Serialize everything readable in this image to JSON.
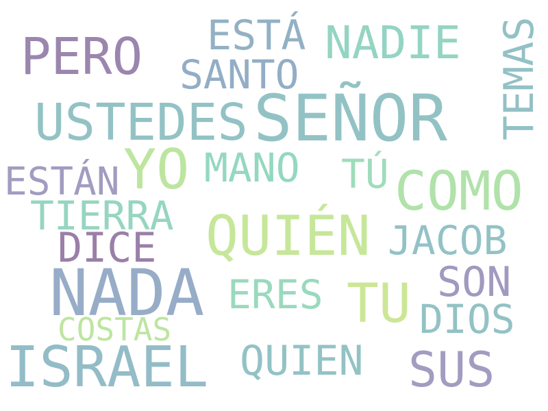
{
  "words": [
    {
      "text": "PERO",
      "color": "#9b86ae"
    },
    {
      "text": "ESTÁ",
      "color": "#93b1c5"
    },
    {
      "text": "NADIE",
      "color": "#94d4c3"
    },
    {
      "text": "TEMAS",
      "color": "#93c1c5"
    },
    {
      "text": "SANTO",
      "color": "#93adc5"
    },
    {
      "text": "USTEDES",
      "color": "#93c2c5"
    },
    {
      "text": "SEÑOR",
      "color": "#93c2c5"
    },
    {
      "text": "YO",
      "color": "#bde5a0"
    },
    {
      "text": "MANO",
      "color": "#94d8c0"
    },
    {
      "text": "TÚ",
      "color": "#9fdcbb"
    },
    {
      "text": "ESTÁN",
      "color": "#a19cc1"
    },
    {
      "text": "COMO",
      "color": "#b0e2aa"
    },
    {
      "text": "TIERRA",
      "color": "#96d5c1"
    },
    {
      "text": "QUIÉN",
      "color": "#c6e79a"
    },
    {
      "text": "JACOB",
      "color": "#93c2c5"
    },
    {
      "text": "DICE",
      "color": "#9a7fa8"
    },
    {
      "text": "NADA",
      "color": "#97acc7"
    },
    {
      "text": "SON",
      "color": "#a199bf"
    },
    {
      "text": "ERES",
      "color": "#9ad9be"
    },
    {
      "text": "TU",
      "color": "#cbe795"
    },
    {
      "text": "DIOS",
      "color": "#93c2c5"
    },
    {
      "text": "COSTAS",
      "color": "#bde5a0"
    },
    {
      "text": "ISRAEL",
      "color": "#93bcc7"
    },
    {
      "text": "QUIEN",
      "color": "#93c2c5"
    },
    {
      "text": "SUS",
      "color": "#a39cc1"
    }
  ]
}
